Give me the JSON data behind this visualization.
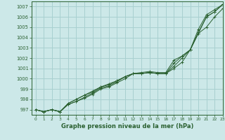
{
  "xlabel": "Graphe pression niveau de la mer (hPa)",
  "xlim": [
    -0.5,
    23
  ],
  "ylim": [
    996.5,
    1007.5
  ],
  "yticks": [
    997,
    998,
    999,
    1000,
    1001,
    1002,
    1003,
    1004,
    1005,
    1006,
    1007
  ],
  "xticks": [
    0,
    1,
    2,
    3,
    4,
    5,
    6,
    7,
    8,
    9,
    10,
    11,
    12,
    13,
    14,
    15,
    16,
    17,
    18,
    19,
    20,
    21,
    22,
    23
  ],
  "background_color": "#cce8e8",
  "grid_color": "#a8d0d0",
  "line_color": "#2a6030",
  "series": [
    [
      997.0,
      996.8,
      997.0,
      996.8,
      997.6,
      998.0,
      998.4,
      998.8,
      999.2,
      999.5,
      999.8,
      1000.2,
      1000.5,
      1000.5,
      1000.6,
      1000.5,
      1000.5,
      1001.0,
      1001.6,
      1002.8,
      1004.5,
      1006.0,
      1006.5,
      1007.2
    ],
    [
      997.0,
      996.8,
      997.0,
      996.8,
      997.6,
      998.0,
      998.4,
      998.7,
      999.2,
      999.4,
      999.8,
      1000.2,
      1000.5,
      1000.5,
      1000.6,
      1000.5,
      1000.5,
      1001.2,
      1002.0,
      1002.8,
      1004.8,
      1006.2,
      1006.7,
      1007.2
    ],
    [
      997.0,
      996.8,
      997.0,
      996.8,
      997.5,
      997.8,
      998.2,
      998.6,
      999.1,
      999.3,
      999.7,
      1000.2,
      1000.5,
      1000.5,
      1000.6,
      1000.5,
      1000.5,
      1001.5,
      1002.2,
      1002.8,
      1004.4,
      1006.0,
      1006.5,
      1007.2
    ],
    [
      997.0,
      996.8,
      997.0,
      996.8,
      997.5,
      997.8,
      998.1,
      998.5,
      999.0,
      999.2,
      999.6,
      1000.0,
      1000.5,
      1000.6,
      1000.7,
      1000.6,
      1000.6,
      1001.8,
      1002.2,
      1002.8,
      1004.4,
      1005.0,
      1006.0,
      1006.8
    ]
  ]
}
